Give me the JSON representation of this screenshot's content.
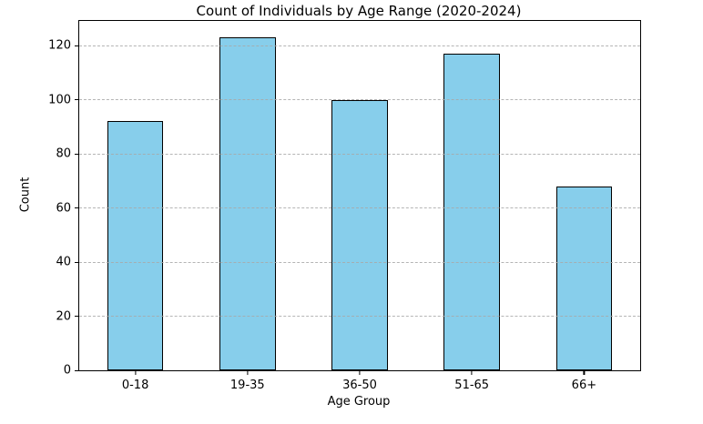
{
  "chart_data": {
    "type": "bar",
    "title": "Count of Individuals by Age Range (2020-2024)",
    "xlabel": "Age Group",
    "ylabel": "Count",
    "categories": [
      "0-18",
      "19-35",
      "36-50",
      "51-65",
      "66+"
    ],
    "values": [
      92,
      123,
      100,
      117,
      68
    ],
    "yticks": [
      0,
      20,
      40,
      60,
      80,
      100,
      120
    ],
    "ylim": [
      0,
      129.15
    ],
    "bar_width_fraction": 0.5,
    "bar_color": "#87CEEB",
    "bar_edge_color": "#000000",
    "grid": "horizontal dashed, drawn over bars",
    "grid_color": "#a8a8a8",
    "legend_position": "none",
    "background_color": "#ffffff"
  }
}
